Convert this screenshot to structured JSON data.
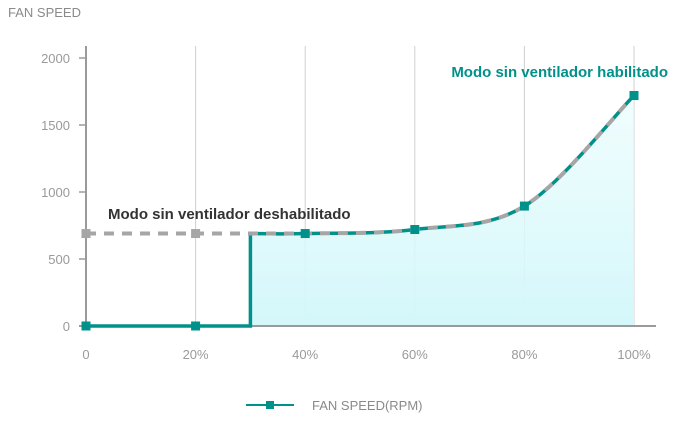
{
  "chart_data": {
    "type": "line",
    "title": "FAN SPEED",
    "x_tick_labels": [
      "0",
      "20%",
      "40%",
      "60%",
      "80%",
      "100%"
    ],
    "y_tick_labels": [
      "0",
      "500",
      "1000",
      "1500",
      "2000"
    ],
    "xlim": [
      0,
      100
    ],
    "ylim": [
      0,
      2000
    ],
    "grid": "vertical",
    "legend_position": "bottom",
    "series": [
      {
        "name": "FAN SPEED(RPM)",
        "color": "#00918a",
        "x": [
          0,
          20,
          30,
          30,
          40,
          60,
          80,
          100
        ],
        "y": [
          0,
          0,
          0,
          690,
          690,
          720,
          895,
          1720
        ],
        "markers_at": [
          0,
          20,
          40,
          60,
          80,
          100
        ],
        "fill": "#dff9fb"
      },
      {
        "color": "#a6a6a6",
        "style": "dashed",
        "x": [
          0,
          20,
          40,
          60,
          80,
          100
        ],
        "y": [
          690,
          690,
          690,
          720,
          895,
          1720
        ]
      }
    ],
    "annotations": [
      {
        "text": "Modo sin ventilador deshabilitado",
        "color": "#333333"
      },
      {
        "text": "Modo sin ventilador habilitado",
        "color": "#00918a"
      }
    ]
  }
}
